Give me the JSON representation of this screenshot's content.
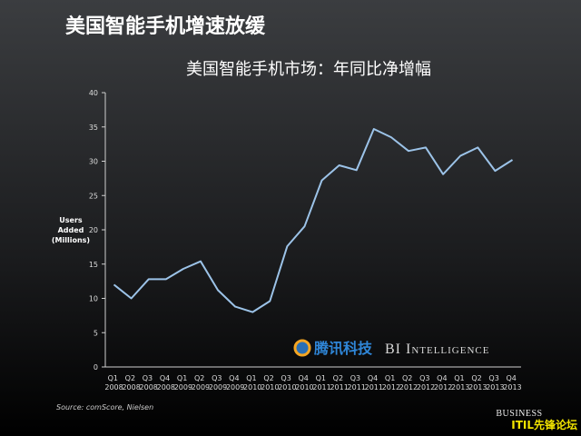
{
  "header": {
    "title": "美国智能手机增速放缓"
  },
  "chart_data": {
    "type": "line",
    "title": "美国智能手机市场：年同比净增幅",
    "y_label": [
      "Users",
      "Added",
      "(Millions)"
    ],
    "categories": [
      "Q1 2008",
      "Q2 2008",
      "Q3 2008",
      "Q4 2008",
      "Q1 2009",
      "Q2 2009",
      "Q3 2009",
      "Q4 2009",
      "Q1 2010",
      "Q2 2010",
      "Q3 2010",
      "Q4 2010",
      "Q1 2011",
      "Q2 2011",
      "Q3 2011",
      "Q4 2011",
      "Q1 2012",
      "Q2 2012",
      "Q3 2012",
      "Q4 2012",
      "Q1 2013",
      "Q2 2013",
      "Q3 2013",
      "Q4 2013"
    ],
    "series": [
      {
        "color": "#9cc3e8",
        "values": [
          12,
          10,
          12.8,
          12.8,
          14.3,
          15.4,
          11.2,
          8.8,
          8.0,
          9.6,
          17.6,
          20.5,
          27.2,
          29.4,
          28.7,
          34.7,
          33.5,
          31.5,
          32.0,
          28.1,
          30.8,
          32.0,
          28.6,
          30.2
        ]
      }
    ],
    "ylim": [
      0,
      40
    ],
    "yticks": [
      0,
      5,
      10,
      15,
      20,
      25,
      30,
      35,
      40
    ],
    "grid": false
  },
  "source": "Source: comScore, Nielsen",
  "watermark": {
    "cn": "腾讯科技",
    "en": "BI Intelligence"
  },
  "footer": {
    "brand": "BUSINESS",
    "forum": "ITIL先锋论坛"
  }
}
